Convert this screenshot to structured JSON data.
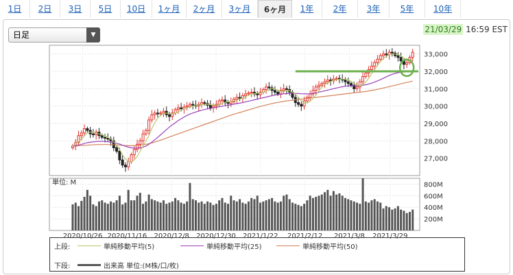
{
  "tabs": [
    {
      "label": "1日"
    },
    {
      "label": "2日"
    },
    {
      "label": "3日"
    },
    {
      "label": "5日"
    },
    {
      "label": "10日"
    },
    {
      "label": "1ヶ月"
    },
    {
      "label": "2ヶ月"
    },
    {
      "label": "3ヶ月"
    },
    {
      "label": "6ヶ月",
      "active": true
    },
    {
      "label": "1年"
    },
    {
      "label": "2年"
    },
    {
      "label": "3年"
    },
    {
      "label": "5年"
    },
    {
      "label": "10年"
    }
  ],
  "period_select": {
    "value": "日足"
  },
  "timestamp": {
    "date": "21/03/29",
    "time": "16:59 EST"
  },
  "legend": {
    "upper_label": "上段:",
    "lower_label": "下段:",
    "ma5": "単純移動平均(5)",
    "ma25": "単純移動平均(25)",
    "ma50": "単純移動平均(50)",
    "volume": "出来高 単位:(M株/口/枚)"
  },
  "colors": {
    "up": "#e0302a",
    "down": "#222222",
    "ma5": "#b5c96a",
    "ma25": "#9b3fb8",
    "ma50": "#d4825a",
    "volume": "#555555",
    "highlight": "#6ab04c"
  },
  "chart_data": [
    {
      "type": "candlestick",
      "ylim": [
        26000,
        33500
      ],
      "yticks": [
        27000,
        28000,
        29000,
        30000,
        31000,
        32000,
        33000
      ],
      "ytick_labels": [
        "27,000",
        "28,000",
        "29,000",
        "30,000",
        "31,000",
        "32,000",
        "33,000"
      ],
      "xtick_labels": [
        "2020/10/26",
        "2020/11/16",
        "2020/12/8",
        "2020/12/30",
        "2021/1/22",
        "2021/2/12",
        "2021/3/8",
        "2021/3/29"
      ],
      "close": [
        27700,
        27900,
        28300,
        28450,
        28700,
        28600,
        28400,
        28350,
        28500,
        28300,
        28200,
        28150,
        28100,
        28000,
        27600,
        27400,
        26900,
        26600,
        26500,
        26800,
        27200,
        27500,
        27800,
        28000,
        28400,
        28600,
        29200,
        29500,
        29600,
        29550,
        29600,
        29700,
        29500,
        29400,
        29600,
        29800,
        29900,
        29850,
        29950,
        30000,
        30100,
        30050,
        30000,
        30100,
        30200,
        30150,
        30050,
        29900,
        30000,
        30100,
        30300,
        30350,
        30200,
        30150,
        30250,
        30400,
        30500,
        30450,
        30600,
        30700,
        30750,
        30800,
        30700,
        30650,
        30800,
        30950,
        31100,
        31050,
        30900,
        30800,
        30700,
        30900,
        31000,
        30950,
        30800,
        30500,
        30200,
        30100,
        30000,
        30300,
        30500,
        30700,
        30900,
        31100,
        31200,
        31300,
        31400,
        31500,
        31450,
        31550,
        31600,
        31550,
        31500,
        31400,
        31300,
        31200,
        31000,
        31100,
        31400,
        31700,
        31900,
        32100,
        32300,
        32500,
        32700,
        32900,
        33000,
        32950,
        33100,
        33050,
        32900,
        32800,
        32600,
        32400,
        32500,
        32800,
        33100
      ],
      "ma5": [
        27700,
        27800,
        27950,
        28100,
        28300,
        28450,
        28500,
        28480,
        28450,
        28400,
        28350,
        28280,
        28200,
        28100,
        27950,
        27750,
        27500,
        27200,
        26950,
        26800,
        26800,
        26900,
        27100,
        27400,
        27700,
        28000,
        28300,
        28700,
        29050,
        29300,
        29450,
        29550,
        29600,
        29560,
        29550,
        29600,
        29680,
        29750,
        29850,
        29900,
        29950,
        30000,
        30030,
        30050,
        30080,
        30100,
        30110,
        30080,
        30050,
        30040,
        30070,
        30150,
        30220,
        30250,
        30260,
        30300,
        30350,
        30400,
        30460,
        30550,
        30620,
        30680,
        30720,
        30740,
        30760,
        30800,
        30860,
        30940,
        31000,
        30980,
        30920,
        30860,
        30850,
        30880,
        30880,
        30800,
        30690,
        30510,
        30320,
        30180,
        30180,
        30280,
        30440,
        30640,
        30880,
        31080,
        31220,
        31340,
        31420,
        31480,
        31520,
        31540,
        31550,
        31540,
        31500,
        31420,
        31320,
        31220,
        31180,
        31240,
        31380,
        31600,
        31860,
        32100,
        32340,
        32560,
        32740,
        32860,
        32950,
        33000,
        32990,
        32960,
        32890,
        32760,
        32640,
        32600,
        32680
      ],
      "ma25": [
        27700,
        27720,
        27760,
        27800,
        27850,
        27890,
        27920,
        27940,
        27960,
        27970,
        27970,
        27960,
        27950,
        27930,
        27900,
        27860,
        27810,
        27750,
        27690,
        27640,
        27600,
        27580,
        27580,
        27600,
        27640,
        27700,
        27800,
        27920,
        28060,
        28200,
        28350,
        28500,
        28650,
        28790,
        28920,
        29040,
        29160,
        29270,
        29370,
        29460,
        29540,
        29600,
        29660,
        29710,
        29760,
        29800,
        29840,
        29870,
        29900,
        29930,
        29960,
        29990,
        30020,
        30050,
        30080,
        30110,
        30140,
        30170,
        30200,
        30240,
        30280,
        30320,
        30360,
        30400,
        30440,
        30480,
        30520,
        30560,
        30600,
        30630,
        30660,
        30680,
        30700,
        30720,
        30730,
        30730,
        30730,
        30720,
        30710,
        30700,
        30700,
        30710,
        30730,
        30760,
        30800,
        30840,
        30880,
        30920,
        30960,
        31000,
        31040,
        31080,
        31110,
        31140,
        31160,
        31170,
        31170,
        31170,
        31180,
        31200,
        31230,
        31270,
        31320,
        31380,
        31450,
        31520,
        31600,
        31680,
        31760,
        31830,
        31880,
        31920,
        31950,
        31960,
        31970,
        31980,
        32000
      ],
      "ma50": [
        27700,
        27710,
        27720,
        27730,
        27740,
        27750,
        27760,
        27770,
        27780,
        27790,
        27790,
        27790,
        27790,
        27780,
        27770,
        27760,
        27750,
        27740,
        27730,
        27720,
        27720,
        27720,
        27730,
        27750,
        27770,
        27800,
        27840,
        27880,
        27930,
        27980,
        28040,
        28100,
        28160,
        28220,
        28280,
        28340,
        28400,
        28460,
        28520,
        28580,
        28640,
        28700,
        28760,
        28820,
        28880,
        28940,
        29000,
        29060,
        29120,
        29180,
        29240,
        29300,
        29360,
        29420,
        29480,
        29530,
        29580,
        29630,
        29680,
        29730,
        29780,
        29830,
        29880,
        29930,
        29980,
        30020,
        30060,
        30100,
        30140,
        30180,
        30210,
        30240,
        30270,
        30300,
        30320,
        30340,
        30360,
        30380,
        30400,
        30420,
        30440,
        30460,
        30480,
        30500,
        30520,
        30540,
        30560,
        30580,
        30600,
        30620,
        30640,
        30660,
        30680,
        30700,
        30720,
        30740,
        30760,
        30780,
        30800,
        30820,
        30840,
        30870,
        30900,
        30930,
        30960,
        31000,
        31040,
        31080,
        31120,
        31160,
        31200,
        31240,
        31280,
        31320,
        31360,
        31400,
        31440
      ]
    },
    {
      "type": "bar",
      "title": "単位: M",
      "ylim": [
        0,
        900
      ],
      "yticks": [
        200,
        400,
        600,
        800
      ],
      "ytick_labels": [
        "200M",
        "400M",
        "600M",
        "800M"
      ],
      "values": [
        450,
        480,
        420,
        510,
        580,
        700,
        600,
        450,
        420,
        500,
        520,
        480,
        460,
        500,
        480,
        520,
        600,
        450,
        480,
        700,
        520,
        520,
        600,
        650,
        460,
        500,
        620,
        540,
        520,
        500,
        480,
        520,
        460,
        480,
        500,
        560,
        520,
        480,
        460,
        500,
        820,
        540,
        520,
        480,
        500,
        460,
        500,
        480,
        440,
        460,
        520,
        560,
        480,
        460,
        600,
        520,
        500,
        540,
        480,
        460,
        500,
        560,
        540,
        600,
        480,
        500,
        520,
        540,
        560,
        500,
        480,
        500,
        600,
        620,
        540,
        480,
        460,
        440,
        420,
        460,
        520,
        600,
        560,
        580,
        600,
        620,
        660,
        700,
        600,
        680,
        620,
        640,
        600,
        560,
        540,
        520,
        500,
        480,
        460,
        900,
        500,
        480,
        520,
        540,
        500,
        480,
        380,
        420,
        400,
        360,
        380,
        420,
        360,
        340,
        300,
        320,
        360
      ]
    }
  ]
}
